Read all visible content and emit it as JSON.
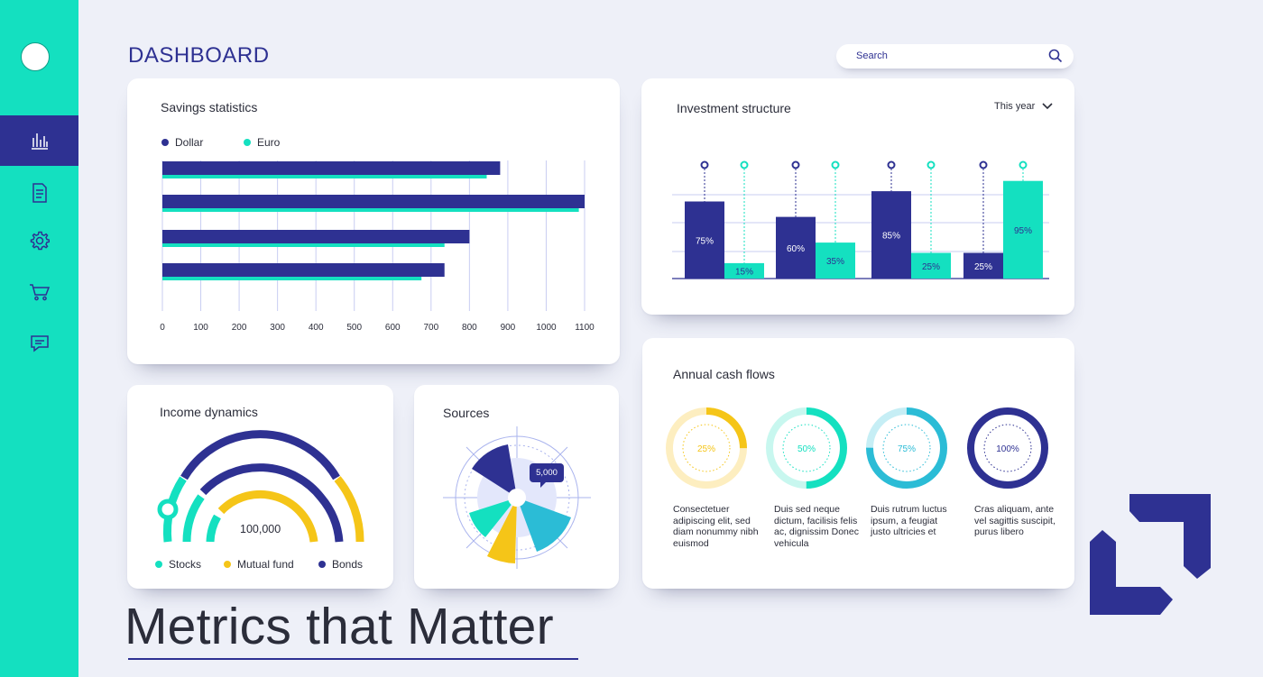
{
  "header": {
    "title": "DASHBOARD"
  },
  "search": {
    "placeholder": "Search"
  },
  "sidebar": {
    "items": [
      {
        "name": "statistics",
        "icon": "bar-chart-icon",
        "active": true
      },
      {
        "name": "documents",
        "icon": "document-icon",
        "active": false
      },
      {
        "name": "settings",
        "icon": "gear-icon",
        "active": false
      },
      {
        "name": "shop",
        "icon": "cart-icon",
        "active": false
      },
      {
        "name": "messages",
        "icon": "chat-icon",
        "active": false
      }
    ]
  },
  "savings": {
    "title": "Savings statistics",
    "legend": {
      "dollar": "Dollar",
      "euro": "Euro"
    }
  },
  "investment": {
    "title": "Investment structure",
    "period": "This year"
  },
  "income": {
    "title": "Income dynamics",
    "center_value": "100,000",
    "legend": {
      "stocks": "Stocks",
      "mutual": "Mutual fund",
      "bonds": "Bonds"
    }
  },
  "sources": {
    "title": "Sources",
    "callout": "5,000"
  },
  "cashflows": {
    "title": "Annual cash flows",
    "items": [
      {
        "value": "25%",
        "fraction": 0.25,
        "color": "#f5c518",
        "track": "#fdeec0",
        "text": "Consectetuer adipiscing elit, sed diam nonummy nibh euismod"
      },
      {
        "value": "50%",
        "fraction": 0.5,
        "color": "#14e0c0",
        "track": "#c8f7ef",
        "text": "Duis sed neque dictum, facilisis felis ac, dignissim Donec vehicula"
      },
      {
        "value": "75%",
        "fraction": 0.75,
        "color": "#2bbcd6",
        "track": "#c6eef5",
        "text": "Duis rutrum luctus ipsum, a feugiat justo ultricies et"
      },
      {
        "value": "100%",
        "fraction": 1.0,
        "color": "#2e3192",
        "track": "#d6d7ee",
        "text": "Cras aliquam, ante vel sagittis suscipit, purus libero"
      }
    ]
  },
  "tagline": "Metrics that Matter",
  "colors": {
    "navy": "#2e3192",
    "teal": "#14e0c0",
    "yellow": "#f5c518",
    "cyan": "#2bbcd6"
  },
  "chart_data": [
    {
      "type": "bar",
      "orientation": "horizontal",
      "title": "Savings statistics",
      "xlim": [
        0,
        1100
      ],
      "ticks": [
        0,
        100,
        200,
        300,
        400,
        500,
        600,
        700,
        800,
        900,
        1000,
        1100
      ],
      "series": [
        {
          "name": "Dollar",
          "color": "#2e3192",
          "values": [
            880,
            1100,
            800,
            735
          ]
        },
        {
          "name": "Euro",
          "color": "#14e0c0",
          "values": [
            845,
            1085,
            735,
            675
          ]
        }
      ]
    },
    {
      "type": "bar",
      "title": "Investment structure",
      "ylim": [
        0,
        100
      ],
      "groups": [
        {
          "values": [
            75,
            15
          ],
          "labels": [
            "75%",
            "15%"
          ]
        },
        {
          "values": [
            60,
            35
          ],
          "labels": [
            "60%",
            "35%"
          ]
        },
        {
          "values": [
            85,
            25
          ],
          "labels": [
            "85%",
            "25%"
          ]
        },
        {
          "values": [
            25,
            95
          ],
          "labels": [
            "25%",
            "95%"
          ]
        }
      ],
      "series_colors": [
        "#2e3192",
        "#14e0c0"
      ]
    },
    {
      "type": "pie",
      "title": "Annual cash flows",
      "values": [
        25,
        50,
        75,
        100
      ],
      "labels": [
        "25%",
        "50%",
        "75%",
        "100%"
      ]
    }
  ]
}
